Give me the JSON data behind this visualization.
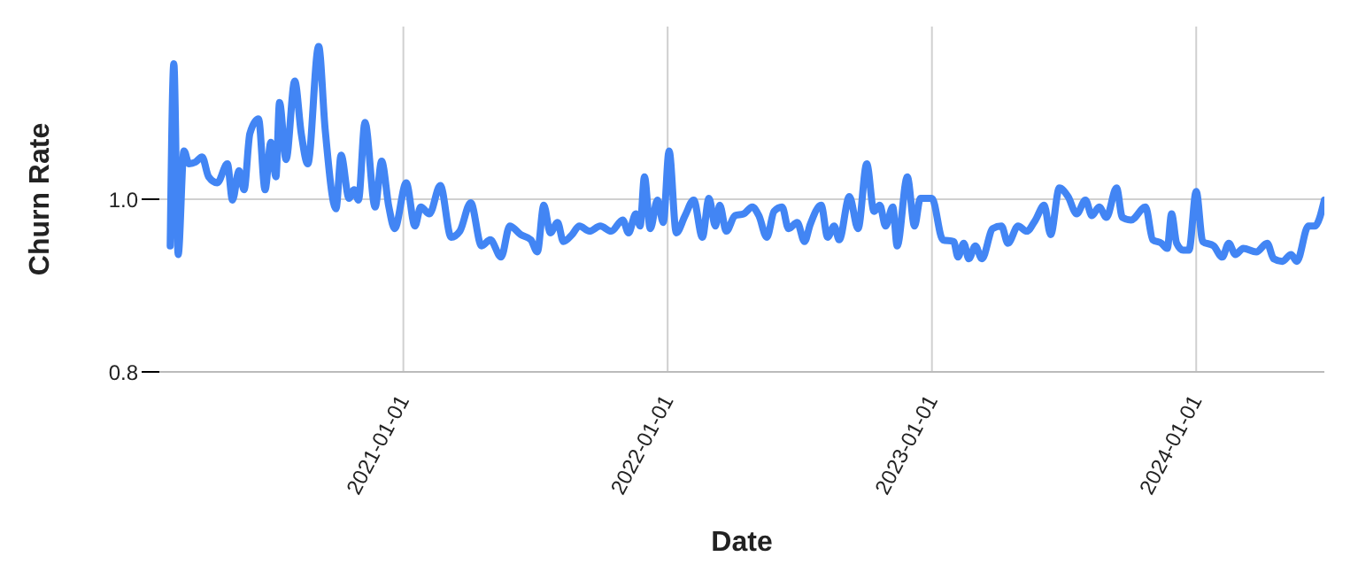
{
  "chart_data": {
    "type": "line",
    "xlabel": "Date",
    "ylabel": "Churn Rate",
    "xlim": [
      "2020-01-30",
      "2024-06-26"
    ],
    "xticks": [
      "2021-01-01",
      "2022-01-01",
      "2023-01-01",
      "2024-01-01"
    ],
    "ylim": [
      0.8,
      1.2
    ],
    "yticks": [
      {
        "value": 0.8,
        "label": "0.8"
      },
      {
        "value": 1,
        "label": "1.0"
      }
    ],
    "grid": true,
    "marker": "none",
    "line_style": "solid",
    "x": [
      "2020-02-14",
      "2020-02-19",
      "2020-02-25",
      "2020-03-04",
      "2020-03-11",
      "2020-03-20",
      "2020-03-29",
      "2020-04-07",
      "2020-04-19",
      "2020-05-03",
      "2020-05-10",
      "2020-05-19",
      "2020-05-26",
      "2020-06-03",
      "2020-06-15",
      "2020-06-24",
      "2020-07-02",
      "2020-07-09",
      "2020-07-14",
      "2020-07-23",
      "2020-08-04",
      "2020-08-13",
      "2020-08-22",
      "2020-09-06",
      "2020-09-15",
      "2020-09-30",
      "2020-10-07",
      "2020-10-18",
      "2020-10-25",
      "2020-10-31",
      "2020-11-09",
      "2020-11-23",
      "2020-12-02",
      "2020-12-12",
      "2020-12-20",
      "2021-01-05",
      "2021-01-17",
      "2021-01-25",
      "2021-02-06",
      "2021-02-21",
      "2021-03-08",
      "2021-03-20",
      "2021-04-04",
      "2021-04-19",
      "2021-05-01",
      "2021-05-16",
      "2021-05-28",
      "2021-06-12",
      "2021-06-26",
      "2021-07-05",
      "2021-07-14",
      "2021-07-23",
      "2021-08-02",
      "2021-08-10",
      "2021-08-22",
      "2021-09-01",
      "2021-09-15",
      "2021-09-30",
      "2021-10-15",
      "2021-10-31",
      "2021-11-08",
      "2021-11-18",
      "2021-11-24",
      "2021-11-30",
      "2021-12-08",
      "2021-12-18",
      "2021-12-26",
      "2022-01-03",
      "2022-01-13",
      "2022-01-25",
      "2022-02-06",
      "2022-02-18",
      "2022-02-27",
      "2022-03-08",
      "2022-03-14",
      "2022-03-23",
      "2022-04-04",
      "2022-04-16",
      "2022-04-28",
      "2022-05-07",
      "2022-05-18",
      "2022-05-28",
      "2022-06-08",
      "2022-06-17",
      "2022-06-29",
      "2022-07-09",
      "2022-07-17",
      "2022-08-01",
      "2022-08-10",
      "2022-08-19",
      "2022-08-26",
      "2022-09-09",
      "2022-09-21",
      "2022-10-03",
      "2022-10-13",
      "2022-10-21",
      "2022-10-29",
      "2022-11-08",
      "2022-11-14",
      "2022-11-28",
      "2022-12-08",
      "2022-12-16",
      "2023-01-01",
      "2023-01-16",
      "2023-01-31",
      "2023-02-06",
      "2023-02-14",
      "2023-02-21",
      "2023-03-02",
      "2023-03-11",
      "2023-03-26",
      "2023-04-07",
      "2023-04-16",
      "2023-04-30",
      "2023-05-12",
      "2023-05-24",
      "2023-06-05",
      "2023-06-14",
      "2023-06-26",
      "2023-07-08",
      "2023-07-20",
      "2023-08-01",
      "2023-08-10",
      "2023-08-20",
      "2023-08-30",
      "2023-09-13",
      "2023-09-21",
      "2023-10-03",
      "2023-10-23",
      "2023-11-02",
      "2023-11-14",
      "2023-11-22",
      "2023-11-28",
      "2023-12-05",
      "2023-12-14",
      "2023-12-22",
      "2024-01-01",
      "2024-01-10",
      "2024-01-25",
      "2024-02-06",
      "2024-02-15",
      "2024-02-24",
      "2024-03-06",
      "2024-03-24",
      "2024-04-08",
      "2024-04-17",
      "2024-04-29",
      "2024-05-11",
      "2024-05-19",
      "2024-06-04",
      "2024-06-13",
      "2024-06-26"
    ],
    "series": [
      {
        "color": "#4285f4",
        "values": [
          0.946,
          1.157,
          0.936,
          1.056,
          1.041,
          1.043,
          1.049,
          1.026,
          1.019,
          1.041,
          0.999,
          1.033,
          1.011,
          1.076,
          1.093,
          1.011,
          1.066,
          1.026,
          1.112,
          1.046,
          1.137,
          1.076,
          1.041,
          1.177,
          1.081,
          0.989,
          1.051,
          1.001,
          1.011,
          0.999,
          1.089,
          0.991,
          1.044,
          0.991,
          0.966,
          1.019,
          0.969,
          0.991,
          0.983,
          1.016,
          0.956,
          0.963,
          0.996,
          0.946,
          0.953,
          0.933,
          0.969,
          0.959,
          0.953,
          0.939,
          0.993,
          0.961,
          0.973,
          0.951,
          0.959,
          0.969,
          0.963,
          0.969,
          0.963,
          0.976,
          0.961,
          0.983,
          0.969,
          1.026,
          0.966,
          0.999,
          0.973,
          1.056,
          0.961,
          0.981,
          0.999,
          0.956,
          1.001,
          0.969,
          0.993,
          0.963,
          0.981,
          0.983,
          0.991,
          0.981,
          0.956,
          0.986,
          0.991,
          0.966,
          0.973,
          0.951,
          0.971,
          0.993,
          0.956,
          0.969,
          0.953,
          1.003,
          0.966,
          1.041,
          0.986,
          0.993,
          0.969,
          0.991,
          0.946,
          1.026,
          0.969,
          1.001,
          1.001,
          0.953,
          0.951,
          0.933,
          0.949,
          0.931,
          0.946,
          0.931,
          0.966,
          0.969,
          0.949,
          0.969,
          0.963,
          0.976,
          0.993,
          0.959,
          1.013,
          1.003,
          0.983,
          0.999,
          0.981,
          0.991,
          0.979,
          1.013,
          0.979,
          0.976,
          0.991,
          0.953,
          0.949,
          0.943,
          0.983,
          0.949,
          0.941,
          0.941,
          1.009,
          0.951,
          0.946,
          0.933,
          0.949,
          0.936,
          0.943,
          0.939,
          0.949,
          0.931,
          0.928,
          0.936,
          0.928,
          0.969,
          0.969,
          0.999
        ]
      }
    ]
  }
}
